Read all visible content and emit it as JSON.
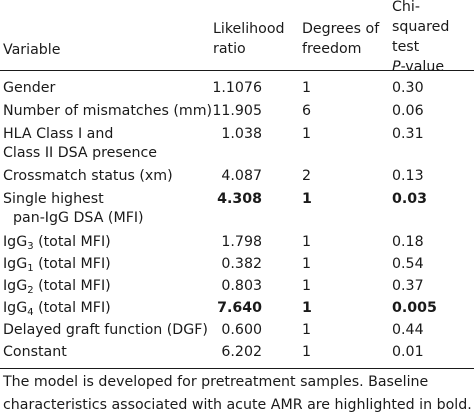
{
  "header": {
    "variable": "Variable",
    "lr_line1": "Likelihood",
    "lr_line2": "ratio",
    "df_line1": "Degrees of",
    "df_line2": "freedom",
    "p_line1": "Chi-squared",
    "p_line2": "test",
    "p_line3_italic": "P",
    "p_line3_rest": "-value"
  },
  "rows": [
    {
      "variable": "Gender",
      "lr": "1.1076",
      "df": "1",
      "p": "0.30",
      "bold": false
    },
    {
      "variable": "Number of mismatches (mm)",
      "lr": "11.905",
      "df": "6",
      "p": "0.06",
      "bold": false
    },
    {
      "variable": "HLA Class I and",
      "variable_line2": "Class II DSA presence",
      "lr": "1.038",
      "df": "1",
      "p": "0.31",
      "bold": false
    },
    {
      "variable": "Crossmatch status (xm)",
      "lr": "4.087",
      "df": "2",
      "p": "0.13",
      "bold": false
    },
    {
      "variable": "Single highest",
      "variable_line2": "pan-IgG DSA (MFI)",
      "lr": "4.308",
      "df": "1",
      "p": "0.03",
      "bold": true
    },
    {
      "variable_prefix": "IgG",
      "variable_sub": "3",
      "variable_suffix": " (total MFI)",
      "lr": "1.798",
      "df": "1",
      "p": "0.18",
      "bold": false
    },
    {
      "variable_prefix": "IgG",
      "variable_sub": "1",
      "variable_suffix": " (total MFI)",
      "lr": "0.382",
      "df": "1",
      "p": "0.54",
      "bold": false
    },
    {
      "variable_prefix": "IgG",
      "variable_sub": "2",
      "variable_suffix": " (total MFI)",
      "lr": "0.803",
      "df": "1",
      "p": "0.37",
      "bold": false
    },
    {
      "variable_prefix": "IgG",
      "variable_sub": "4",
      "variable_suffix": " (total MFI)",
      "lr": "7.640",
      "df": "1",
      "p": "0.005",
      "bold": true
    },
    {
      "variable": "Delayed graft function (DGF)",
      "lr": "0.600",
      "df": "1",
      "p": "0.44",
      "bold": false
    },
    {
      "variable": "Constant",
      "lr": "6.202",
      "df": "1",
      "p": "0.01",
      "bold": false
    }
  ],
  "footnote": "The model is developed for pretreatment samples. Baseline characteristics associated with acute AMR are highlighted in bold."
}
